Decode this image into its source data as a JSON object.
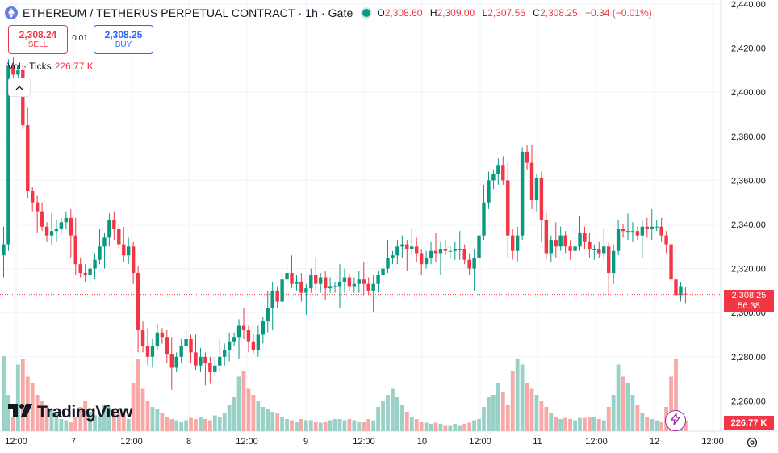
{
  "header": {
    "symbol": "ETHEREUM / TETHERUS PERPETUAL CONTRACT",
    "sep1": "·",
    "interval": "1h",
    "sep2": "·",
    "exchange": "Gate",
    "ohlc": {
      "o_label": "O",
      "o_value": "2,308.60",
      "h_label": "H",
      "h_value": "2,309.00",
      "l_label": "L",
      "l_value": "2,307.56",
      "c_label": "C",
      "c_value": "2,308.25",
      "change": "−0.34 (−0.01%)"
    }
  },
  "trade": {
    "sell_price": "2,308.24",
    "sell_label": "SELL",
    "spread": "0.01",
    "buy_price": "2,308.25",
    "buy_label": "BUY"
  },
  "volume_legend": {
    "label": "Vol · Ticks",
    "value": "226.77 K"
  },
  "logo": {
    "text": "TradingView"
  },
  "colors": {
    "up": "#089981",
    "down": "#f23645",
    "up_vol": "#99d1c7",
    "down_vol": "#f7a9a7"
  },
  "price_axis": {
    "ticks": [
      2440,
      2420,
      2400,
      2380,
      2360,
      2340,
      2320,
      2300,
      2280,
      2260
    ],
    "tick_labels": [
      "2,440.00",
      "2,420.00",
      "2,400.00",
      "2,380.00",
      "2,360.00",
      "2,340.00",
      "2,320.00",
      "2,300.00",
      "2,280.00",
      "2,260.00"
    ]
  },
  "last_price": {
    "value": "2,308.25",
    "countdown": "56:38",
    "price": 2308.25
  },
  "volume_tag": "226.77 K",
  "time_axis": {
    "labels": [
      "12:00",
      "7",
      "12:00",
      "8",
      "12:00",
      "9",
      "12:00",
      "10",
      "12:00",
      "11",
      "12:00",
      "12",
      "12:00"
    ]
  },
  "chart_data": {
    "type": "candlestick",
    "y_range": [
      2248,
      2445
    ],
    "closes": [
      2331,
      2412,
      2408,
      2410,
      2385,
      2355,
      2350,
      2346,
      2339,
      2335,
      2337,
      2338,
      2341,
      2343,
      2335,
      2322,
      2318,
      2317,
      2320,
      2324,
      2330,
      2334,
      2342,
      2338,
      2331,
      2326,
      2330,
      2318,
      2292,
      2285,
      2280,
      2285,
      2291,
      2289,
      2281,
      2275,
      2280,
      2285,
      2288,
      2282,
      2276,
      2280,
      2277,
      2273,
      2276,
      2280,
      2283,
      2287,
      2289,
      2294,
      2292,
      2287,
      2283,
      2290,
      2296,
      2302,
      2310,
      2305,
      2315,
      2318,
      2313,
      2314,
      2309,
      2311,
      2317,
      2313,
      2316,
      2311,
      2312,
      2312,
      2314,
      2316,
      2312,
      2313,
      2315,
      2313,
      2310,
      2313,
      2317,
      2320,
      2325,
      2326,
      2330,
      2331,
      2329,
      2330,
      2327,
      2322,
      2325,
      2328,
      2327,
      2329,
      2328,
      2328,
      2329,
      2329,
      2324,
      2320,
      2325,
      2335,
      2350,
      2360,
      2363,
      2367,
      2360,
      2335,
      2328,
      2335,
      2373,
      2368,
      2351,
      2361,
      2342,
      2327,
      2333,
      2330,
      2335,
      2330,
      2328,
      2330,
      2336,
      2332,
      2329,
      2329,
      2327,
      2330,
      2318,
      2328,
      2338,
      2337,
      2337,
      2337,
      2335,
      2339,
      2338,
      2339,
      2339,
      2335,
      2331,
      2315,
      2308,
      2312,
      2308.25
    ],
    "up_volumes_pct": [
      0.72,
      0.35,
      0.28,
      0.22,
      0.18
    ],
    "note_volumes": "relative heights 0-1 per candle"
  },
  "volume_data": [
    0.62,
    0.3,
    0.12,
    0.55,
    0.6,
    0.45,
    0.4,
    0.3,
    0.25,
    0.22,
    0.18,
    0.15,
    0.1,
    0.09,
    0.08,
    0.12,
    0.2,
    0.25,
    0.16,
    0.13,
    0.12,
    0.22,
    0.2,
    0.18,
    0.15,
    0.14,
    0.1,
    0.4,
    0.6,
    0.35,
    0.25,
    0.2,
    0.18,
    0.15,
    0.12,
    0.1,
    0.09,
    0.08,
    0.09,
    0.11,
    0.1,
    0.12,
    0.1,
    0.09,
    0.13,
    0.12,
    0.15,
    0.22,
    0.28,
    0.45,
    0.5,
    0.35,
    0.3,
    0.25,
    0.2,
    0.18,
    0.16,
    0.15,
    0.12,
    0.1,
    0.09,
    0.08,
    0.1,
    0.09,
    0.09,
    0.08,
    0.07,
    0.08,
    0.09,
    0.1,
    0.1,
    0.09,
    0.1,
    0.09,
    0.08,
    0.08,
    0.1,
    0.09,
    0.2,
    0.25,
    0.3,
    0.35,
    0.28,
    0.22,
    0.16,
    0.12,
    0.1,
    0.08,
    0.07,
    0.06,
    0.07,
    0.06,
    0.05,
    0.05,
    0.06,
    0.05,
    0.06,
    0.07,
    0.09,
    0.1,
    0.2,
    0.28,
    0.3,
    0.4,
    0.32,
    0.22,
    0.5,
    0.6,
    0.55,
    0.4,
    0.35,
    0.3,
    0.25,
    0.2,
    0.15,
    0.12,
    0.1,
    0.11,
    0.1,
    0.09,
    0.11,
    0.11,
    0.12,
    0.12,
    0.1,
    0.09,
    0.2,
    0.3,
    0.55,
    0.45,
    0.4,
    0.3,
    0.22,
    0.15,
    0.12,
    0.1,
    0.09,
    0.08,
    0.2,
    0.45,
    0.6,
    0.13,
    0.09
  ]
}
